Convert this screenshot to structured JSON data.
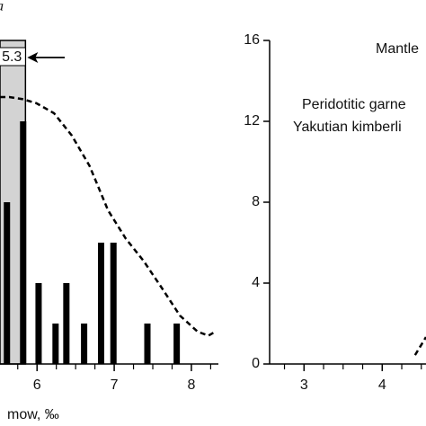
{
  "chart_data": [
    {
      "type": "bar",
      "panel_label": "a",
      "x_label": "mow, ‰",
      "highlight_label": "5.3",
      "highlight_range": [
        5.52,
        5.85
      ],
      "x": [
        5.61,
        5.82,
        6.02,
        6.24,
        6.38,
        6.61,
        6.83,
        6.99,
        7.43,
        7.81
      ],
      "values": [
        8,
        12,
        4,
        2,
        4,
        2,
        6,
        6,
        2,
        2
      ],
      "color": "#000000",
      "curve": {
        "x": [
          5.52,
          5.64,
          5.81,
          5.99,
          6.22,
          6.45,
          6.68,
          6.92,
          7.15,
          7.38,
          7.61,
          7.85,
          8.08,
          8.22,
          8.31
        ],
        "y": [
          13.2,
          13.2,
          13.1,
          12.9,
          12.4,
          11.3,
          9.8,
          7.6,
          6.2,
          5.1,
          3.8,
          2.4,
          1.6,
          1.4,
          1.6
        ]
      },
      "xlim": [
        5.52,
        8.35
      ],
      "ylim": [
        0,
        16
      ],
      "xticks": [
        6,
        7,
        8
      ],
      "xminor": [
        5.75,
        6.25,
        6.5,
        6.75,
        7.25,
        7.5,
        7.75,
        8.25
      ]
    },
    {
      "type": "line",
      "annotations": [
        "Mantle",
        "Peridotitic garne",
        "Yakutian kimberli"
      ],
      "curve": {
        "x": [
          4.42,
          4.56
        ],
        "y": [
          0.44,
          1.33
        ]
      },
      "xlim": [
        2.56,
        4.56
      ],
      "ylim": [
        0,
        16
      ],
      "xticks": [
        3,
        4
      ],
      "yticks": [
        0,
        4,
        8,
        12,
        16
      ],
      "xminor": [
        2.75,
        3.25,
        3.5,
        3.75,
        4.25,
        4.5
      ]
    }
  ]
}
